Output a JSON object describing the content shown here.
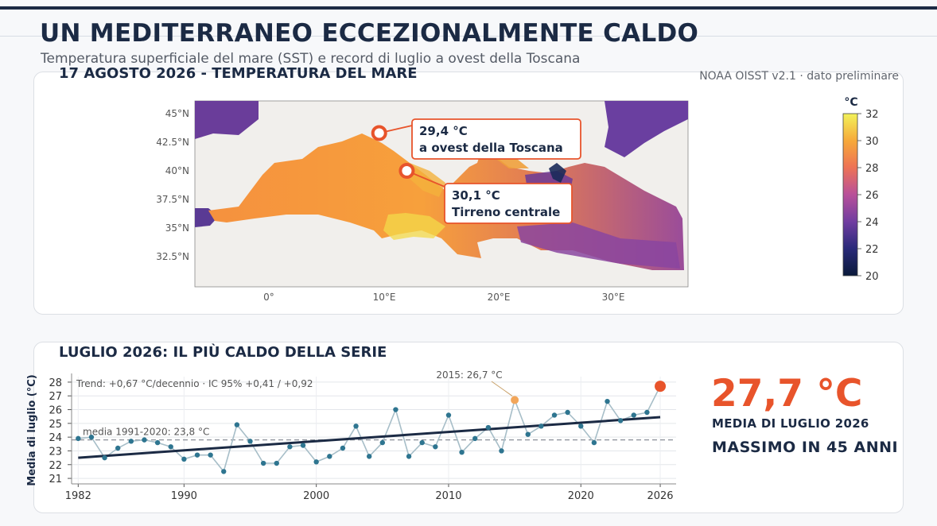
{
  "header": {
    "title": "UN MEDITERRANEO ECCEZIONALMENTE CALDO",
    "subtitle": "Temperatura superficiale del mare (SST) e record di luglio a ovest della Toscana"
  },
  "map_panel": {
    "title": "17 AGOSTO 2026 - TEMPERATURA DEL MARE",
    "source": "NOAA OISST v2.1 · dato preliminare",
    "colorbar_unit": "°C",
    "colorbar_ticks": [
      "32",
      "30",
      "28",
      "26",
      "24",
      "22",
      "20"
    ],
    "lat_ticks": [
      "45°N",
      "42.5°N",
      "40°N",
      "37.5°N",
      "35°N",
      "32.5°N"
    ],
    "lon_ticks": [
      "0°",
      "10°E",
      "20°E",
      "30°E"
    ],
    "callouts": [
      {
        "value": "29,4 °C",
        "label": "a ovest della Toscana",
        "lon": 9.6,
        "lat": 43.3
      },
      {
        "value": "30,1 °C",
        "label": "Tirreno centrale",
        "lon": 12.0,
        "lat": 40.0
      }
    ]
  },
  "series_panel": {
    "title": "LUGLIO 2026: IL PIÙ CALDO DELLA SERIE",
    "trend_note": "Trend: +0,67 °C/decennio  ·  IC 95% +0,41 / +0,92",
    "mean_note": "media 1991-2020: 23,8 °C",
    "peak_note": "2015: 26,7 °C",
    "big_value": "27,7 °C",
    "big_label": "MEDIA DI LUGLIO 2026",
    "big_note": "MASSIMO IN 45 ANNI"
  },
  "colors": {
    "accent": "#e8542b",
    "navy": "#1b2a44",
    "series_point": "#2e7590",
    "highlight_2015": "#f2a65a"
  },
  "chart_data": {
    "type": "line",
    "xlabel": "",
    "ylabel": "Media di luglio (°C)",
    "xlim": [
      1981.5,
      2027.2
    ],
    "ylim": [
      20.6,
      28.4
    ],
    "x_ticks": [
      "1982",
      "1990",
      "2000",
      "2010",
      "2020",
      "2026"
    ],
    "y_ticks": [
      "21",
      "22",
      "23",
      "24",
      "25",
      "26",
      "27",
      "28"
    ],
    "grid": true,
    "reference_mean": 23.8,
    "trend_line": {
      "x": [
        1982,
        2026
      ],
      "y": [
        22.5,
        25.45
      ]
    },
    "highlight_points": [
      {
        "x": 2015,
        "y": 26.7
      },
      {
        "x": 2026,
        "y": 27.7
      }
    ],
    "series": [
      {
        "x": [
          1982,
          1983,
          1984,
          1985,
          1986,
          1987,
          1988,
          1989,
          1990,
          1991,
          1992,
          1993,
          1994,
          1995,
          1996,
          1997,
          1998,
          1999,
          2000,
          2001,
          2002,
          2003,
          2004,
          2005,
          2006,
          2007,
          2008,
          2009,
          2010,
          2011,
          2012,
          2013,
          2014,
          2015,
          2016,
          2017,
          2018,
          2019,
          2020,
          2021,
          2022,
          2023,
          2024,
          2025,
          2026
        ],
        "values": [
          23.9,
          24.0,
          22.5,
          23.2,
          23.7,
          23.8,
          23.6,
          23.3,
          22.4,
          22.7,
          22.7,
          21.5,
          24.9,
          23.7,
          22.1,
          22.1,
          23.3,
          23.4,
          22.2,
          22.6,
          23.2,
          24.8,
          22.6,
          23.6,
          26.0,
          22.6,
          23.6,
          23.3,
          25.6,
          22.9,
          23.9,
          24.7,
          23.0,
          26.7,
          24.2,
          24.8,
          25.6,
          25.8,
          24.8,
          23.6,
          26.6,
          25.2,
          25.6,
          25.8,
          27.7
        ]
      }
    ]
  }
}
